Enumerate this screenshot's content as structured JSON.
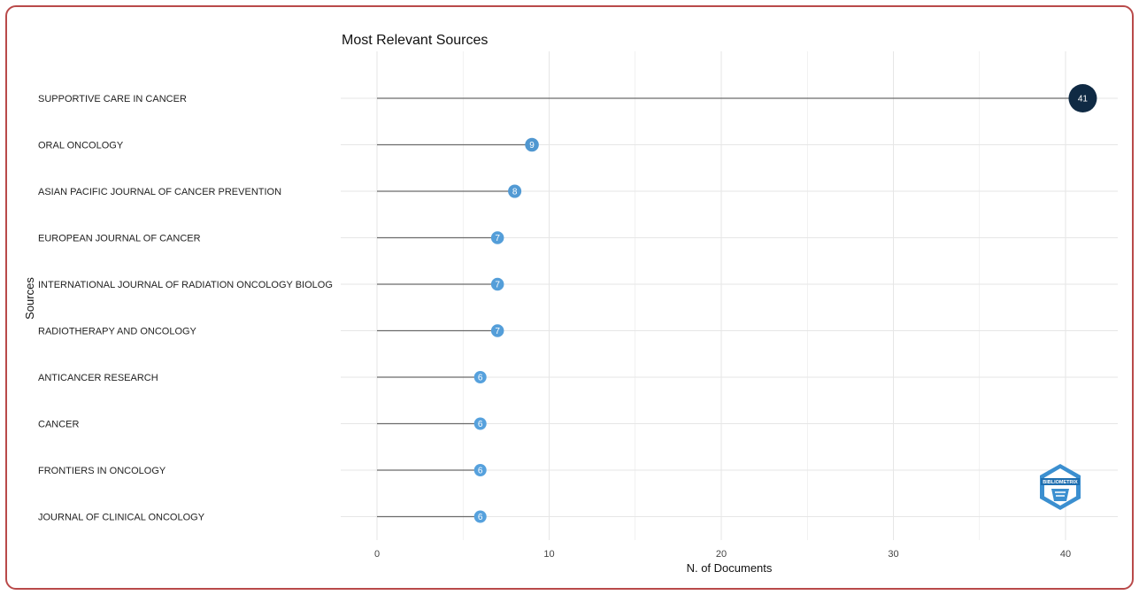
{
  "chart_data": {
    "type": "lollipop",
    "title": "Most Relevant Sources",
    "xlabel": "N. of Documents",
    "ylabel": "Sources",
    "categories": [
      "SUPPORTIVE CARE IN CANCER",
      "ORAL ONCOLOGY",
      "ASIAN PACIFIC JOURNAL OF CANCER PREVENTION",
      "EUROPEAN JOURNAL OF CANCER",
      "INTERNATIONAL JOURNAL OF RADIATION ONCOLOGY BIOLOG",
      "RADIOTHERAPY AND ONCOLOGY",
      "ANTICANCER RESEARCH",
      "CANCER",
      "FRONTIERS IN ONCOLOGY",
      "JOURNAL OF CLINICAL ONCOLOGY"
    ],
    "values": [
      41,
      9,
      8,
      7,
      7,
      7,
      6,
      6,
      6,
      6
    ],
    "xlim": [
      0,
      42.5
    ],
    "xticks": [
      0,
      10,
      20,
      30,
      40
    ],
    "grid": true,
    "colors": {
      "point_low": "#56a1dd",
      "point_high": "#0f2a44",
      "stem": "#6b6b6b",
      "grid": "#e6e6e6"
    }
  },
  "logo": {
    "text": "BIBLIOMETRIX",
    "color": "#3b8fd0"
  }
}
